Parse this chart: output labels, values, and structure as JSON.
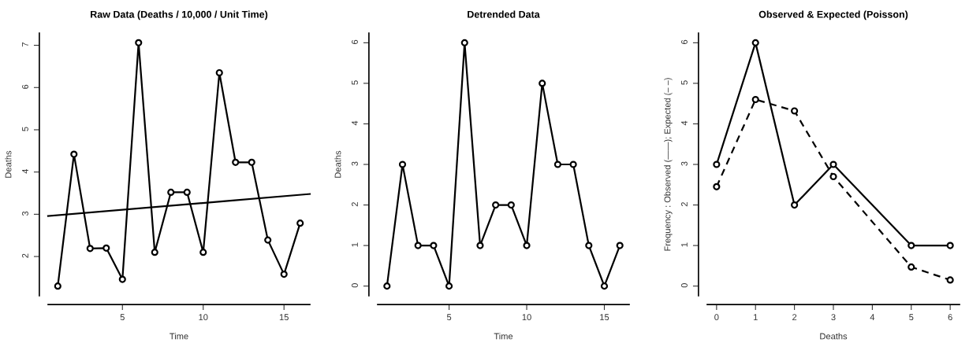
{
  "chart_data": [
    {
      "type": "line",
      "title": "Raw Data (Deaths / 10,000 / Unit Time)",
      "xlabel": "Time",
      "ylabel": "Deaths",
      "x": [
        1,
        2,
        3,
        4,
        5,
        6,
        7,
        8,
        9,
        10,
        11,
        12,
        13,
        14,
        15,
        16
      ],
      "xlim": [
        0.4,
        16.6
      ],
      "ylim": [
        1.07,
        7.29
      ],
      "xticks": [
        5,
        10,
        15
      ],
      "yticks": [
        2,
        3,
        4,
        5,
        6,
        7
      ],
      "grid": false,
      "marker": "circle",
      "line_style": "solid",
      "series": [
        {
          "color": "#000000",
          "values": [
            1.3,
            4.42,
            2.19,
            2.2,
            1.46,
            7.06,
            2.1,
            3.52,
            3.52,
            2.1,
            6.35,
            4.23,
            4.23,
            2.39,
            1.58,
            2.79
          ]
        },
        {
          "color": "#000000",
          "x": [
            0.4,
            16.6
          ],
          "values": [
            2.96,
            3.48
          ],
          "marker": "none"
        }
      ]
    },
    {
      "type": "line",
      "title": "Detrended Data",
      "xlabel": "Time",
      "ylabel": "Deaths",
      "x": [
        1,
        2,
        3,
        4,
        5,
        6,
        7,
        8,
        9,
        10,
        11,
        12,
        13,
        14,
        15,
        16
      ],
      "xlim": [
        0.4,
        16.6
      ],
      "ylim": [
        -0.24,
        6.24
      ],
      "xticks": [
        5,
        10,
        15
      ],
      "yticks": [
        0,
        1,
        2,
        3,
        4,
        5,
        6
      ],
      "grid": false,
      "marker": "circle",
      "line_style": "solid",
      "series": [
        {
          "color": "#000000",
          "values": [
            0,
            3,
            1,
            1,
            0,
            6,
            1,
            2,
            2,
            1,
            5,
            3,
            3,
            1,
            0,
            1
          ]
        }
      ]
    },
    {
      "type": "line",
      "title": "Observed & Expected (Poisson)",
      "xlabel": "Deaths",
      "ylabel": "Frequency : Observed (——); Expected (– –)",
      "x": [
        0,
        1,
        2,
        3,
        5,
        6
      ],
      "xlim": [
        -0.24,
        6.24
      ],
      "ylim": [
        -0.24,
        6.24
      ],
      "xticks": [
        0,
        1,
        2,
        3,
        4,
        5,
        6
      ],
      "yticks": [
        0,
        1,
        2,
        3,
        4,
        5,
        6
      ],
      "grid": false,
      "marker": "circle",
      "line_style": "solid",
      "series": [
        {
          "color": "#000000",
          "values": [
            3,
            6,
            2,
            3,
            1,
            1
          ]
        },
        {
          "color": "#000000",
          "values": [
            2.45,
            4.6,
            4.32,
            2.7,
            0.47,
            0.15
          ],
          "line_style": "dashed"
        }
      ]
    }
  ]
}
